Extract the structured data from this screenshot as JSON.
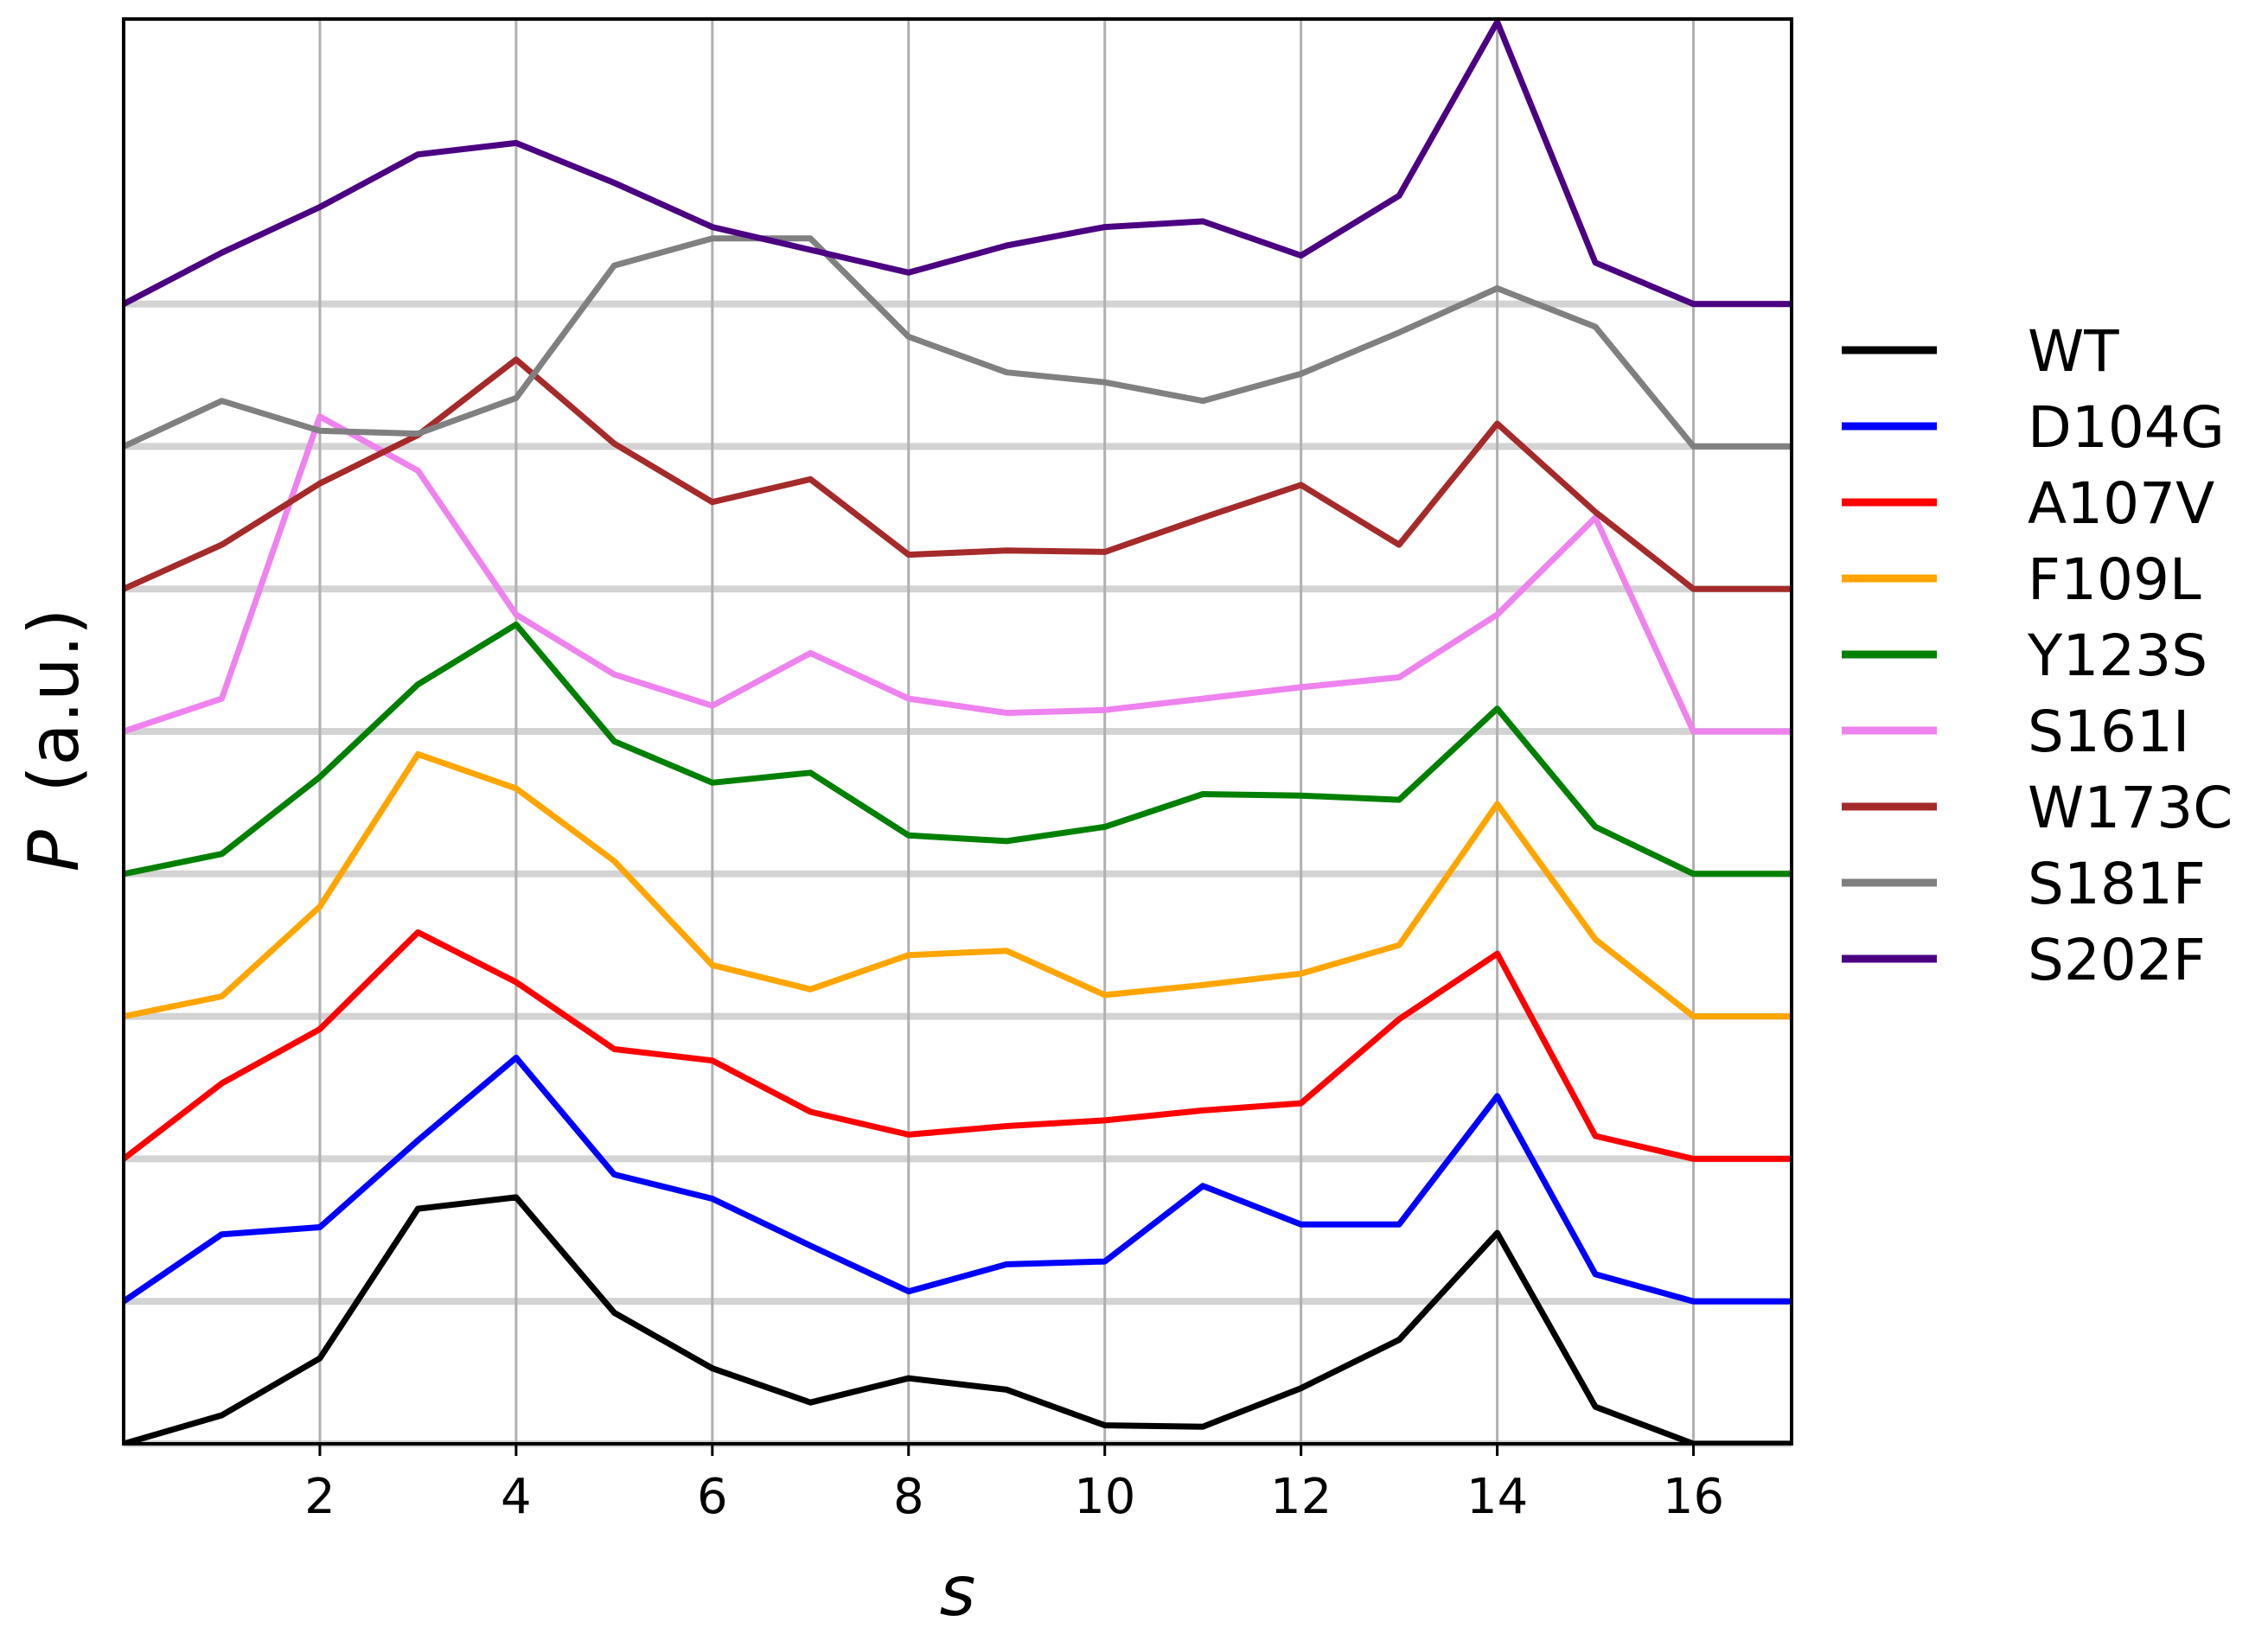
{
  "chart_data": {
    "type": "line",
    "title": "",
    "xlabel": "s",
    "ylabel_symbol": "P",
    "ylabel_unit": "(a.u.)",
    "xlim": [
      0,
      17
    ],
    "xticks": [
      2,
      4,
      6,
      8,
      10,
      12,
      14,
      16
    ],
    "vertical_grid": true,
    "offset_step": 1,
    "offset_gridlines": true,
    "ylim": [
      0,
      10
    ],
    "legend_position": "outside-right",
    "x": [
      0,
      1,
      2,
      3,
      4,
      5,
      6,
      7,
      8,
      9,
      10,
      11,
      12,
      13,
      14,
      15,
      16,
      17
    ],
    "series": [
      {
        "name": "WT",
        "color": "#000000",
        "offset": 0,
        "values": [
          0.0,
          0.2,
          0.6,
          1.65,
          1.73,
          0.92,
          0.53,
          0.29,
          0.46,
          0.38,
          0.13,
          0.12,
          0.39,
          0.73,
          1.48,
          0.26,
          0.0,
          0.0
        ]
      },
      {
        "name": "D104G",
        "color": "#0000ff",
        "offset": 1,
        "values": [
          0.0,
          0.47,
          0.52,
          1.13,
          1.71,
          0.89,
          0.72,
          0.39,
          0.07,
          0.26,
          0.28,
          0.81,
          0.54,
          0.54,
          1.44,
          0.19,
          0.0,
          0.0
        ]
      },
      {
        "name": "A107V",
        "color": "#ff0000",
        "offset": 2,
        "values": [
          0.0,
          0.53,
          0.91,
          1.59,
          1.24,
          0.77,
          0.69,
          0.33,
          0.17,
          0.23,
          0.27,
          0.34,
          0.39,
          0.98,
          1.44,
          0.16,
          0.0,
          0.0
        ]
      },
      {
        "name": "F109L",
        "color": "#ffa500",
        "offset": 3,
        "values": [
          0.0,
          0.14,
          0.77,
          1.84,
          1.6,
          1.09,
          0.36,
          0.19,
          0.43,
          0.46,
          0.15,
          0.22,
          0.3,
          0.5,
          1.49,
          0.54,
          0.0,
          0.0
        ]
      },
      {
        "name": "Y123S",
        "color": "#008000",
        "offset": 4,
        "values": [
          0.0,
          0.14,
          0.68,
          1.33,
          1.75,
          0.93,
          0.64,
          0.71,
          0.27,
          0.23,
          0.33,
          0.56,
          0.55,
          0.52,
          1.16,
          0.33,
          0.0,
          0.0
        ]
      },
      {
        "name": "S161I",
        "color": "#ee82ee",
        "offset": 5,
        "values": [
          0.0,
          0.23,
          2.21,
          1.83,
          0.82,
          0.4,
          0.18,
          0.55,
          0.23,
          0.13,
          0.15,
          0.23,
          0.31,
          0.38,
          0.82,
          1.5,
          0.0,
          0.0
        ]
      },
      {
        "name": "W173C",
        "color": "#a52a2a",
        "offset": 6,
        "values": [
          0.0,
          0.31,
          0.74,
          1.08,
          1.61,
          1.02,
          0.61,
          0.77,
          0.24,
          0.27,
          0.26,
          0.5,
          0.73,
          0.31,
          1.16,
          0.54,
          0.0,
          0.0
        ]
      },
      {
        "name": "S181F",
        "color": "#808080",
        "offset": 7,
        "values": [
          0.0,
          0.32,
          0.11,
          0.09,
          0.34,
          1.27,
          1.46,
          1.46,
          0.77,
          0.52,
          0.45,
          0.32,
          0.51,
          0.8,
          1.11,
          0.84,
          0.0,
          0.0
        ]
      },
      {
        "name": "S202F",
        "color": "#4b0082",
        "offset": 8,
        "values": [
          0.0,
          0.36,
          0.68,
          1.05,
          1.13,
          0.85,
          0.54,
          0.38,
          0.22,
          0.41,
          0.54,
          0.58,
          0.34,
          0.76,
          1.98,
          0.29,
          0.0,
          0.0
        ]
      }
    ]
  }
}
